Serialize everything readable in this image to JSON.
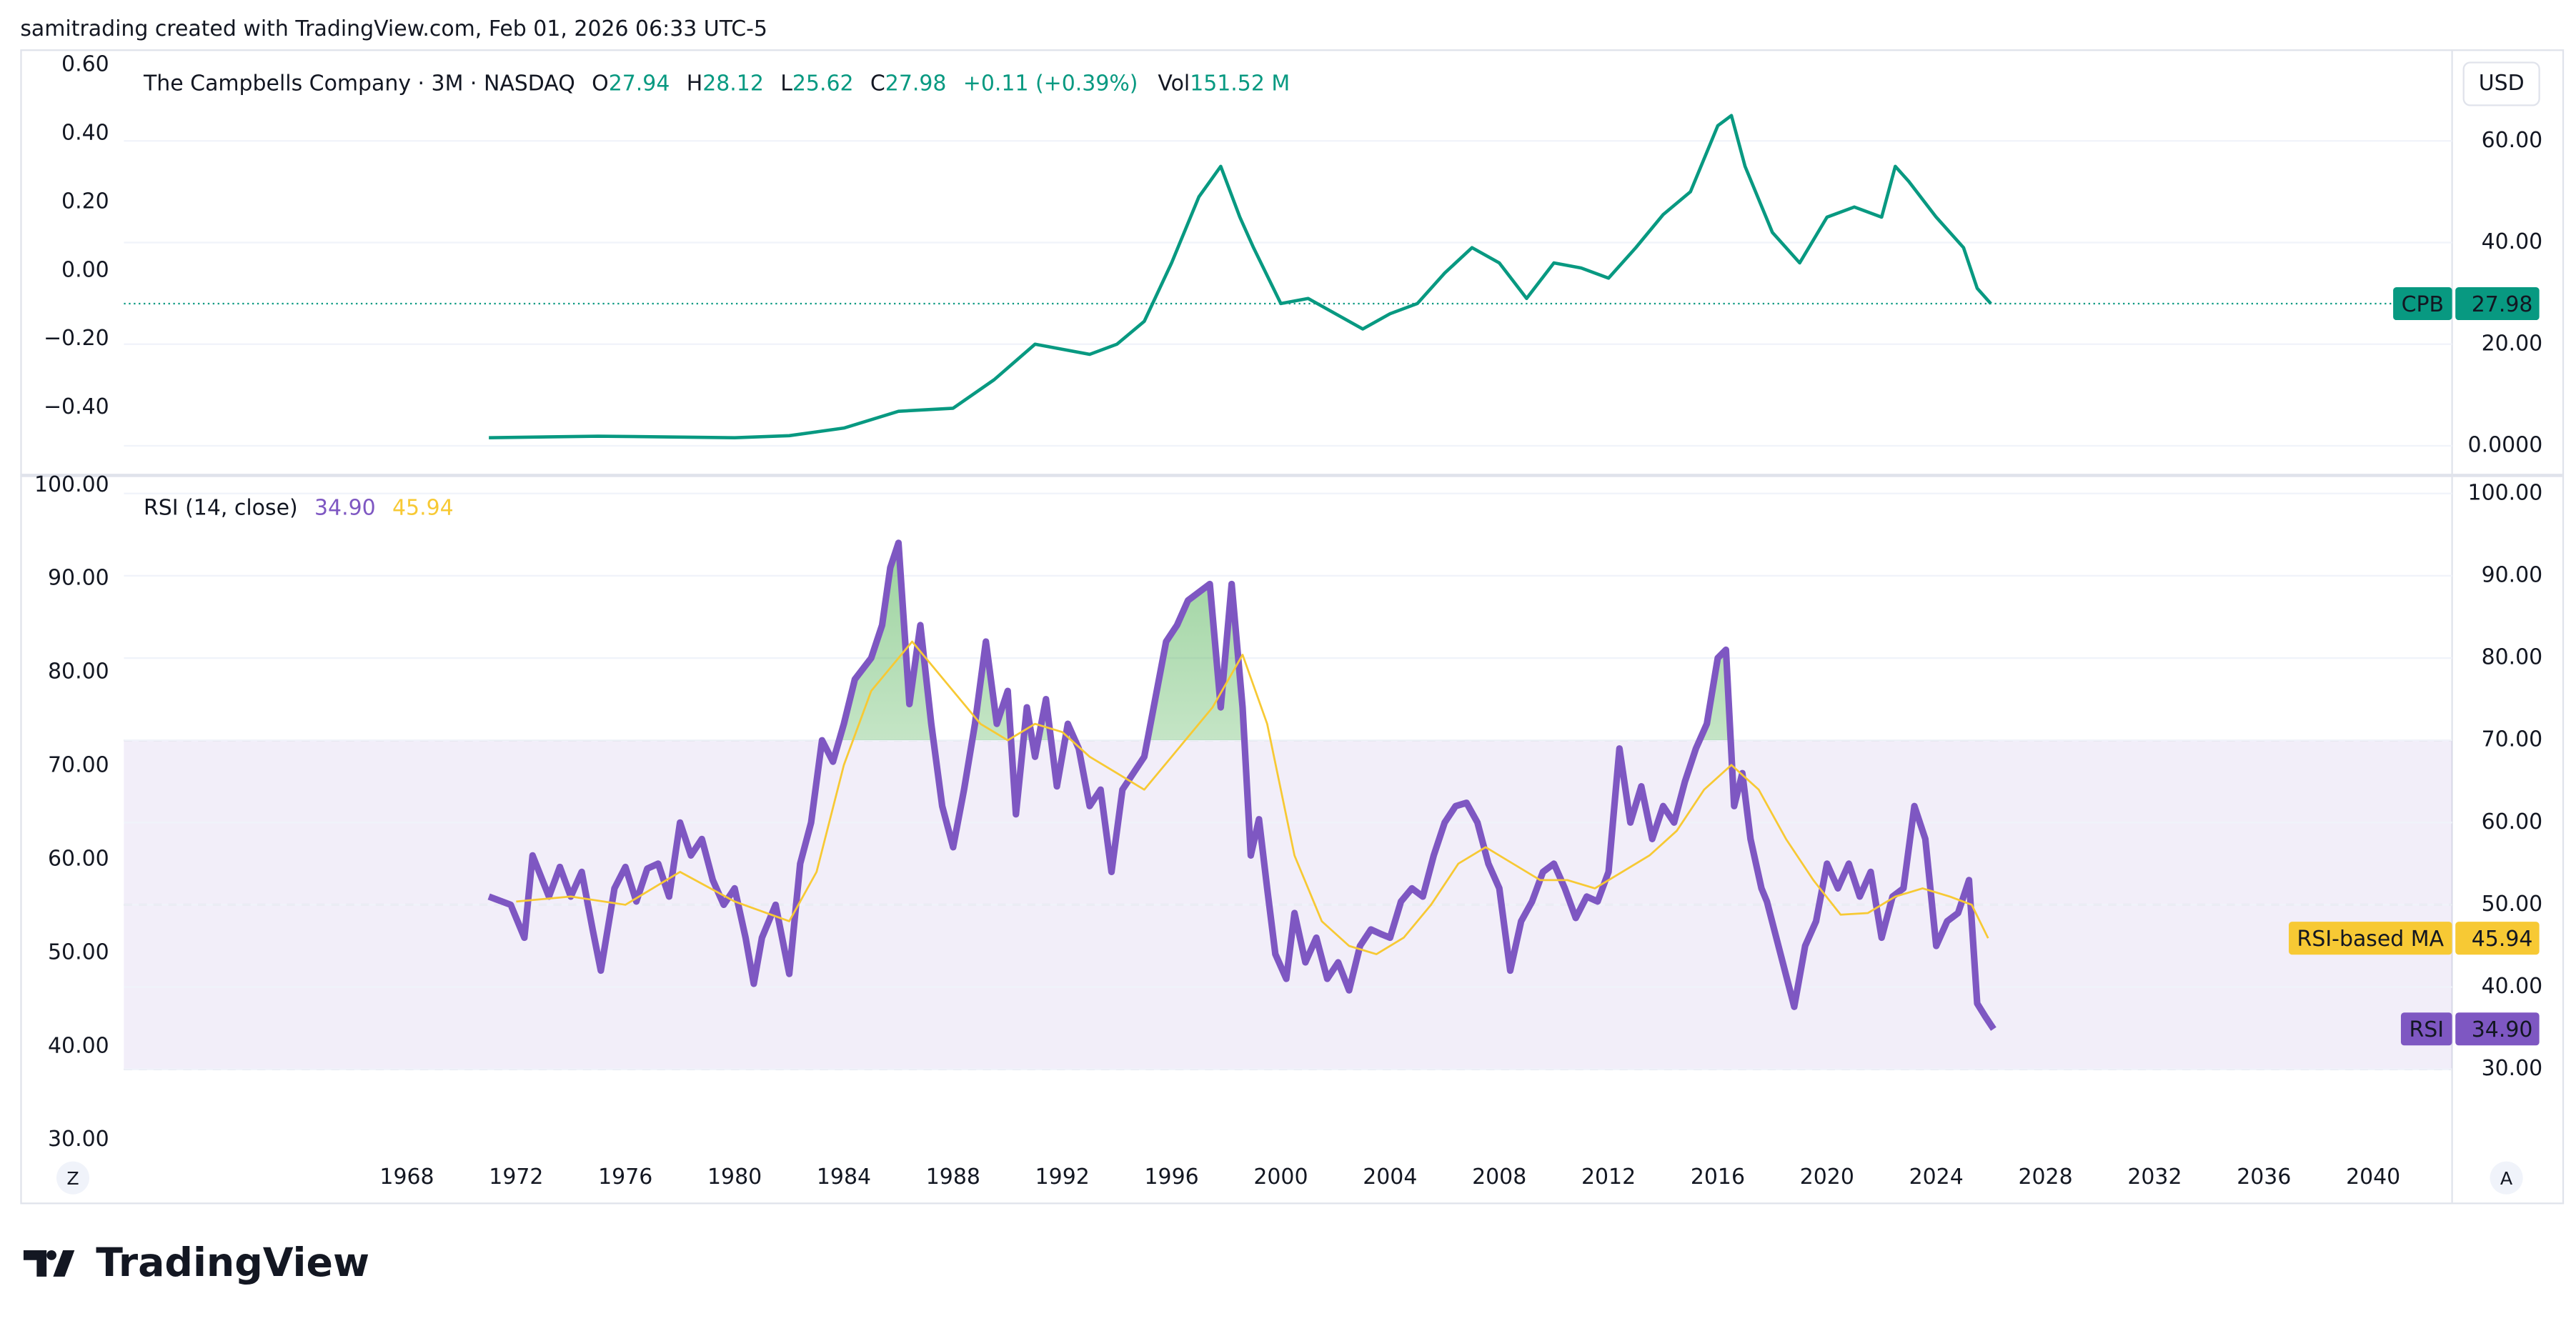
{
  "header": {
    "attribution": "samitrading created with TradingView.com, Feb 01, 2026 06:33 UTC-5"
  },
  "chart_data": [
    {
      "type": "line",
      "title": "The Campbells Company · 3M · NASDAQ",
      "ohlc": [
        {
          "label": "O",
          "value": 27.94
        },
        {
          "label": "H",
          "value": 28.12
        },
        {
          "label": "L",
          "value": 25.62
        },
        {
          "label": "C",
          "value": 27.98
        }
      ],
      "change": "+0.11 (+0.39%)",
      "volume": {
        "label": "Vol",
        "value": "151.52 M"
      },
      "currency": "USD",
      "series": [
        {
          "name": "CPB",
          "color": "#089981",
          "x": [
            1971,
            1975,
            1980,
            1982,
            1984,
            1986,
            1988,
            1989.5,
            1991,
            1992,
            1993,
            1994,
            1995,
            1996,
            1997,
            1997.8,
            1998.5,
            1999,
            2000,
            2001,
            2002,
            2003,
            2004,
            2005,
            2006,
            2007,
            2008,
            2009,
            2010,
            2011,
            2012,
            2013,
            2014,
            2015,
            2016,
            2016.5,
            2017,
            2018,
            2019,
            2020,
            2021,
            2022,
            2022.5,
            2023,
            2024,
            2025,
            2025.5,
            2026
          ],
          "values": [
            1.6,
            1.9,
            1.6,
            2,
            3.5,
            6.8,
            7.4,
            13,
            20,
            19,
            18,
            20,
            24.5,
            36,
            49,
            55,
            45,
            39,
            28,
            29,
            26,
            23,
            26,
            28,
            34,
            39,
            36,
            29,
            36,
            35,
            33,
            39,
            45.5,
            50,
            63,
            65,
            55,
            42,
            36,
            45,
            47,
            45,
            55,
            52,
            45,
            39,
            31,
            27.98
          ]
        }
      ],
      "xlim": [
        1953.84,
        2042.89
      ],
      "xticks": [
        1968,
        1972,
        1976,
        1980,
        1984,
        1988,
        1992,
        1996,
        2000,
        2004,
        2008,
        2012,
        2016,
        2020,
        2024,
        2028,
        2032,
        2036,
        2040
      ],
      "ylim": [
        -5.5,
        77.7
      ],
      "yticks": [
        {
          "value": 0,
          "label": "0.0000"
        },
        {
          "value": 20,
          "label": "20.00"
        },
        {
          "value": 40,
          "label": "40.00"
        },
        {
          "value": 60,
          "label": "60.00"
        }
      ],
      "y2lim": [
        -0.593,
        0.641
      ],
      "y2ticks": [
        {
          "value": -0.4,
          "label": "−0.40"
        },
        {
          "value": -0.2,
          "label": "−0.20"
        },
        {
          "value": 0,
          "label": "0.00"
        },
        {
          "value": 0.2,
          "label": "0.20"
        },
        {
          "value": 0.4,
          "label": "0.40"
        },
        {
          "value": 0.6,
          "label": "0.60"
        }
      ],
      "grid": true
    },
    {
      "type": "line",
      "title": "RSI (14, close)",
      "series": [
        {
          "name": "RSI",
          "color": "#7e57c2",
          "x": [
            1971.0,
            1971.8,
            1972.3,
            1972.6,
            1973.2,
            1973.6,
            1974.0,
            1974.4,
            1974.8,
            1975.1,
            1975.6,
            1976.0,
            1976.4,
            1976.8,
            1977.2,
            1977.6,
            1978.0,
            1978.4,
            1978.8,
            1979.2,
            1979.6,
            1980.0,
            1980.4,
            1980.7,
            1981.0,
            1981.5,
            1982.0,
            1982.4,
            1982.8,
            1983.2,
            1983.6,
            1984.0,
            1984.4,
            1985.0,
            1985.4,
            1985.7,
            1986.0,
            1986.4,
            1986.8,
            1987.2,
            1987.6,
            1988.0,
            1988.4,
            1988.8,
            1989.2,
            1989.6,
            1990.0,
            1990.3,
            1990.7,
            1991.0,
            1991.4,
            1991.8,
            1992.2,
            1992.6,
            1993.0,
            1993.4,
            1993.8,
            1994.2,
            1994.6,
            1995.0,
            1995.4,
            1995.8,
            1996.2,
            1996.6,
            1997.0,
            1997.4,
            1997.8,
            1998.2,
            1998.6,
            1998.9,
            1999.2,
            1999.5,
            1999.8,
            2000.2,
            2000.5,
            2000.9,
            2001.3,
            2001.7,
            2002.1,
            2002.5,
            2002.9,
            2003.3,
            2003.7,
            2004.0,
            2004.4,
            2004.8,
            2005.2,
            2005.6,
            2006.0,
            2006.4,
            2006.8,
            2007.2,
            2007.6,
            2008.0,
            2008.4,
            2008.8,
            2009.2,
            2009.6,
            2010.0,
            2010.4,
            2010.8,
            2011.2,
            2011.6,
            2012.0,
            2012.4,
            2012.8,
            2013.2,
            2013.6,
            2014.0,
            2014.4,
            2014.8,
            2015.2,
            2015.6,
            2016.0,
            2016.3,
            2016.6,
            2016.9,
            2017.2,
            2017.6,
            2017.8,
            2018.3,
            2018.8,
            2019.2,
            2019.6,
            2020.0,
            2020.4,
            2020.8,
            2021.2,
            2021.6,
            2022.0,
            2022.4,
            2022.8,
            2023.2,
            2023.6,
            2024.0,
            2024.4,
            2024.8,
            2025.2,
            2025.5,
            2025.8,
            2026.1
          ],
          "values": [
            51,
            50,
            46,
            56,
            51,
            54.6,
            51,
            54,
            47,
            42,
            52,
            54.6,
            50.4,
            54.4,
            55,
            51,
            60,
            56,
            58,
            53,
            50,
            52,
            46,
            40.4,
            46,
            50,
            41.6,
            55,
            60,
            70,
            67.4,
            72,
            77.4,
            80,
            84,
            91,
            94,
            74.4,
            84,
            72,
            62,
            57,
            64,
            72,
            82,
            72,
            76,
            61,
            74,
            68,
            75,
            64.4,
            72,
            69,
            62,
            64,
            54,
            64,
            66,
            68,
            75,
            82,
            84,
            87,
            88,
            89,
            74,
            89,
            74,
            56,
            60.4,
            52,
            44,
            41,
            49,
            43,
            46,
            41,
            43,
            39.6,
            45,
            47,
            46.4,
            46,
            50.4,
            52,
            51,
            56,
            60,
            62,
            62.4,
            60,
            55,
            52,
            42,
            48,
            50.4,
            54,
            55,
            52,
            48.4,
            51,
            50.4,
            54,
            69,
            60,
            64.4,
            58,
            62,
            60,
            65,
            69,
            72,
            80,
            81,
            62,
            66,
            58,
            52,
            50.4,
            44,
            37.6,
            45,
            48,
            55,
            52,
            55,
            51,
            54,
            46,
            51,
            52,
            62,
            58,
            45,
            48,
            49,
            53,
            38,
            36.4,
            34.9
          ],
          "value_labels": [
            null,
            null,
            null,
            null,
            null,
            null,
            null,
            null,
            null,
            null,
            null,
            null,
            null,
            null,
            null,
            null,
            null,
            null,
            null,
            null,
            null,
            null,
            null,
            null,
            null,
            null,
            null,
            null,
            null,
            null,
            null,
            null,
            null,
            null,
            null,
            null,
            null,
            null,
            null,
            null,
            null,
            null,
            null,
            null,
            null,
            null,
            null,
            null,
            null,
            null,
            null,
            null,
            null,
            null,
            null,
            null,
            null,
            null,
            null,
            null,
            null,
            null,
            null,
            null,
            null,
            null,
            null,
            null,
            null,
            null,
            null,
            null,
            null,
            null,
            null,
            null,
            null,
            null,
            null,
            null,
            null,
            null,
            null,
            null,
            null,
            null,
            null,
            null,
            null,
            null,
            null,
            null,
            null,
            null,
            null,
            null,
            null,
            null,
            null,
            null,
            null,
            null,
            null,
            null,
            null,
            null,
            null,
            null,
            null,
            null,
            null,
            null,
            null,
            null,
            null,
            null,
            null,
            null,
            null,
            null,
            null,
            null,
            null,
            null,
            null,
            null,
            null,
            null,
            null,
            null,
            null,
            null,
            null,
            null,
            null,
            null,
            null,
            null,
            null,
            null,
            "34.90"
          ]
        },
        {
          "name": "RSI-based MA",
          "color": "#f7c934",
          "x": [
            1972,
            1974,
            1976,
            1978,
            1980,
            1982,
            1983,
            1984,
            1985,
            1986.5,
            1988,
            1989,
            1990,
            1991,
            1992,
            1993,
            1994,
            1995,
            1996,
            1997.5,
            1998.6,
            1999.5,
            2000.5,
            2001.5,
            2002.5,
            2003.5,
            2004.5,
            2005.5,
            2006.5,
            2007.5,
            2008.5,
            2009.5,
            2010.5,
            2011.5,
            2012.5,
            2013.5,
            2014.5,
            2015.5,
            2016.5,
            2017.5,
            2018.5,
            2019.5,
            2020.5,
            2021.5,
            2022.5,
            2023.5,
            2024.5,
            2025.3,
            2025.9
          ],
          "values": [
            50.4,
            51,
            50,
            54,
            50.4,
            48,
            54,
            67,
            76,
            82,
            76,
            72,
            70,
            72,
            71,
            68,
            66,
            64,
            68,
            74,
            80.4,
            72,
            56,
            48,
            45,
            44,
            46,
            50,
            55,
            57,
            55,
            53,
            53,
            52,
            54,
            56,
            59,
            64,
            67,
            64,
            58,
            53,
            48.8,
            49,
            51,
            52,
            51,
            50,
            45.94
          ]
        }
      ],
      "bands": [
        70,
        50,
        30
      ],
      "xlim": [
        1953.84,
        2042.89
      ],
      "ylim": [
        20,
        102
      ],
      "yticks": [
        {
          "value": 30,
          "label": "30.00"
        },
        {
          "value": 40,
          "label": "40.00"
        },
        {
          "value": 50,
          "label": "50.00"
        },
        {
          "value": 60,
          "label": "60.00"
        },
        {
          "value": 70,
          "label": "70.00"
        },
        {
          "value": 80,
          "label": "80.00"
        },
        {
          "value": 90,
          "label": "90.00"
        },
        {
          "value": 100,
          "label": "100.00"
        }
      ],
      "y2lim": [
        28.77,
        100.88
      ],
      "y2ticks": [
        {
          "value": 30,
          "label": "30.00"
        },
        {
          "value": 40,
          "label": "40.00"
        },
        {
          "value": 50,
          "label": "50.00"
        },
        {
          "value": 60,
          "label": "60.00"
        },
        {
          "value": 70,
          "label": "70.00"
        },
        {
          "value": 80,
          "label": "80.00"
        },
        {
          "value": 90,
          "label": "90.00"
        },
        {
          "value": 100,
          "label": "100.00"
        }
      ],
      "grid": true
    }
  ],
  "footer": {
    "brand": "TradingView",
    "buttons": [
      "Z",
      "A"
    ]
  }
}
